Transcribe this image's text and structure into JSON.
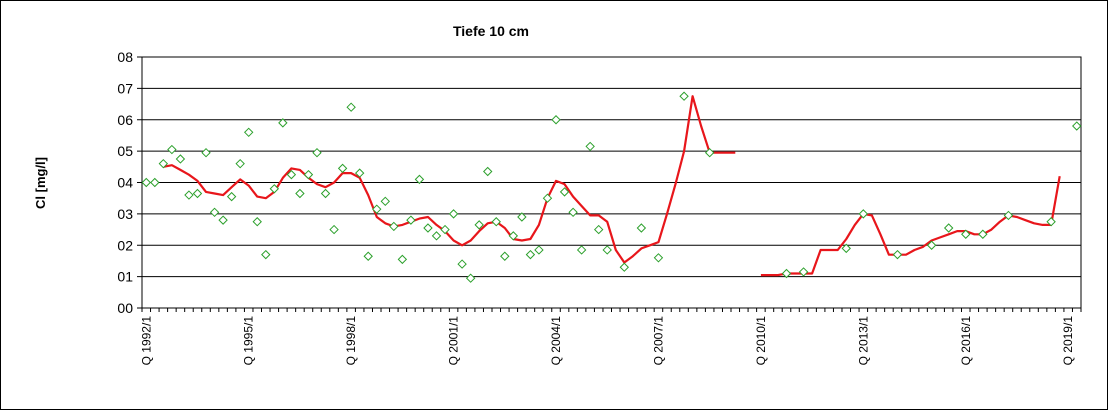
{
  "chart_data": {
    "type": "line",
    "title": "Tiefe  10 cm",
    "xlabel": "",
    "ylabel": "Cl [mg/l]",
    "ylim": [
      0,
      8
    ],
    "ytick_labels": [
      "00",
      "01",
      "02",
      "03",
      "04",
      "05",
      "06",
      "07",
      "08"
    ],
    "x_categories": [
      "Q 1992/1",
      "Q 1992/2",
      "Q 1992/3",
      "Q 1992/4",
      "Q 1993/1",
      "Q 1993/2",
      "Q 1993/3",
      "Q 1993/4",
      "Q 1994/1",
      "Q 1994/2",
      "Q 1994/3",
      "Q 1994/4",
      "Q 1995/1",
      "Q 1995/2",
      "Q 1995/3",
      "Q 1995/4",
      "Q 1996/1",
      "Q 1996/2",
      "Q 1996/3",
      "Q 1996/4",
      "Q 1997/1",
      "Q 1997/2",
      "Q 1997/3",
      "Q 1997/4",
      "Q 1998/1",
      "Q 1998/2",
      "Q 1998/3",
      "Q 1998/4",
      "Q 1999/1",
      "Q 1999/2",
      "Q 1999/3",
      "Q 1999/4",
      "Q 2000/1",
      "Q 2000/2",
      "Q 2000/3",
      "Q 2000/4",
      "Q 2001/1",
      "Q 2001/2",
      "Q 2001/3",
      "Q 2001/4",
      "Q 2002/1",
      "Q 2002/2",
      "Q 2002/3",
      "Q 2002/4",
      "Q 2003/1",
      "Q 2003/2",
      "Q 2003/3",
      "Q 2003/4",
      "Q 2004/1",
      "Q 2004/2",
      "Q 2004/3",
      "Q 2004/4",
      "Q 2005/1",
      "Q 2005/2",
      "Q 2005/3",
      "Q 2005/4",
      "Q 2006/1",
      "Q 2006/2",
      "Q 2006/3",
      "Q 2006/4",
      "Q 2007/1",
      "Q 2007/2",
      "Q 2007/3",
      "Q 2007/4",
      "Q 2008/1",
      "Q 2008/2",
      "Q 2008/3",
      "Q 2008/4",
      "Q 2009/1",
      "Q 2009/2",
      "Q 2009/3",
      "Q 2009/4",
      "Q 2010/1",
      "Q 2010/2",
      "Q 2010/3",
      "Q 2010/4",
      "Q 2011/1",
      "Q 2011/2",
      "Q 2011/3",
      "Q 2011/4",
      "Q 2012/1",
      "Q 2012/2",
      "Q 2012/3",
      "Q 2012/4",
      "Q 2013/1",
      "Q 2013/2",
      "Q 2013/3",
      "Q 2013/4",
      "Q 2014/1",
      "Q 2014/2",
      "Q 2014/3",
      "Q 2014/4",
      "Q 2015/1",
      "Q 2015/2",
      "Q 2015/3",
      "Q 2015/4",
      "Q 2016/1",
      "Q 2016/2",
      "Q 2016/3",
      "Q 2016/4",
      "Q 2017/1",
      "Q 2017/2",
      "Q 2017/3",
      "Q 2017/4",
      "Q 2018/1",
      "Q 2018/2",
      "Q 2018/3",
      "Q 2018/4",
      "Q 2019/1",
      "Q 2019/2"
    ],
    "x_tick_labels": [
      {
        "category": "Q 1992/1",
        "label": "Q 1992/1"
      },
      {
        "category": "Q 1995/1",
        "label": "Q 1995/1"
      },
      {
        "category": "Q 1998/1",
        "label": "Q 1998/1"
      },
      {
        "category": "Q 2001/1",
        "label": "Q 2001/1"
      },
      {
        "category": "Q 2004/1",
        "label": "Q 2004/1"
      },
      {
        "category": "Q 2007/1",
        "label": "Q 2007/1"
      },
      {
        "category": "Q 2010/1",
        "label": "Q 2010/1"
      },
      {
        "category": "Q 2013/1",
        "label": "Q 2013/1"
      },
      {
        "category": "Q 2016/1",
        "label": "Q 2016/1"
      },
      {
        "category": "Q 2019/1",
        "label": "Q 2019/1"
      }
    ],
    "grid": true,
    "series": [
      {
        "type": "scatter",
        "marker": "diamond",
        "color": "#2ca02c",
        "points": [
          {
            "x": "Q 1992/1",
            "y": 4.0
          },
          {
            "x": "Q 1992/2",
            "y": 4.0
          },
          {
            "x": "Q 1992/3",
            "y": 4.6
          },
          {
            "x": "Q 1992/4",
            "y": 5.05
          },
          {
            "x": "Q 1993/1",
            "y": 4.75
          },
          {
            "x": "Q 1993/2",
            "y": 3.6
          },
          {
            "x": "Q 1993/3",
            "y": 3.65
          },
          {
            "x": "Q 1993/4",
            "y": 4.95
          },
          {
            "x": "Q 1994/1",
            "y": 3.05
          },
          {
            "x": "Q 1994/2",
            "y": 2.8
          },
          {
            "x": "Q 1994/3",
            "y": 3.55
          },
          {
            "x": "Q 1994/4",
            "y": 4.6
          },
          {
            "x": "Q 1995/1",
            "y": 5.6
          },
          {
            "x": "Q 1995/2",
            "y": 2.75
          },
          {
            "x": "Q 1995/3",
            "y": 1.7
          },
          {
            "x": "Q 1995/4",
            "y": 3.8
          },
          {
            "x": "Q 1996/1",
            "y": 5.9
          },
          {
            "x": "Q 1996/2",
            "y": 4.25
          },
          {
            "x": "Q 1996/3",
            "y": 3.65
          },
          {
            "x": "Q 1996/4",
            "y": 4.25
          },
          {
            "x": "Q 1997/1",
            "y": 4.95
          },
          {
            "x": "Q 1997/2",
            "y": 3.65
          },
          {
            "x": "Q 1997/3",
            "y": 2.5
          },
          {
            "x": "Q 1997/4",
            "y": 4.45
          },
          {
            "x": "Q 1998/1",
            "y": 6.4
          },
          {
            "x": "Q 1998/2",
            "y": 4.3
          },
          {
            "x": "Q 1998/3",
            "y": 1.65
          },
          {
            "x": "Q 1998/4",
            "y": 3.15
          },
          {
            "x": "Q 1999/1",
            "y": 3.4
          },
          {
            "x": "Q 1999/2",
            "y": 2.6
          },
          {
            "x": "Q 1999/3",
            "y": 1.55
          },
          {
            "x": "Q 1999/4",
            "y": 2.8
          },
          {
            "x": "Q 2000/1",
            "y": 4.1
          },
          {
            "x": "Q 2000/2",
            "y": 2.55
          },
          {
            "x": "Q 2000/3",
            "y": 2.3
          },
          {
            "x": "Q 2000/4",
            "y": 2.5
          },
          {
            "x": "Q 2001/1",
            "y": 3.0
          },
          {
            "x": "Q 2001/2",
            "y": 1.4
          },
          {
            "x": "Q 2001/3",
            "y": 0.95
          },
          {
            "x": "Q 2001/4",
            "y": 2.65
          },
          {
            "x": "Q 2002/1",
            "y": 4.35
          },
          {
            "x": "Q 2002/2",
            "y": 2.75
          },
          {
            "x": "Q 2002/3",
            "y": 1.65
          },
          {
            "x": "Q 2002/4",
            "y": 2.3
          },
          {
            "x": "Q 2003/1",
            "y": 2.9
          },
          {
            "x": "Q 2003/2",
            "y": 1.7
          },
          {
            "x": "Q 2003/3",
            "y": 1.85
          },
          {
            "x": "Q 2003/4",
            "y": 3.5
          },
          {
            "x": "Q 2004/1",
            "y": 6.0
          },
          {
            "x": "Q 2004/2",
            "y": 3.7
          },
          {
            "x": "Q 2004/3",
            "y": 3.05
          },
          {
            "x": "Q 2004/4",
            "y": 1.85
          },
          {
            "x": "Q 2005/1",
            "y": 5.15
          },
          {
            "x": "Q 2005/2",
            "y": 2.5
          },
          {
            "x": "Q 2005/3",
            "y": 1.85
          },
          {
            "x": "Q 2006/1",
            "y": 1.3
          },
          {
            "x": "Q 2006/3",
            "y": 2.55
          },
          {
            "x": "Q 2007/1",
            "y": 1.6
          },
          {
            "x": "Q 2007/4",
            "y": 6.75
          },
          {
            "x": "Q 2008/3",
            "y": 4.95
          },
          {
            "x": "Q 2010/4",
            "y": 1.1
          },
          {
            "x": "Q 2011/2",
            "y": 1.15
          },
          {
            "x": "Q 2012/3",
            "y": 1.9
          },
          {
            "x": "Q 2013/1",
            "y": 3.0
          },
          {
            "x": "Q 2014/1",
            "y": 1.7
          },
          {
            "x": "Q 2015/1",
            "y": 2.0
          },
          {
            "x": "Q 2015/3",
            "y": 2.55
          },
          {
            "x": "Q 2016/1",
            "y": 2.35
          },
          {
            "x": "Q 2016/3",
            "y": 2.35
          },
          {
            "x": "Q 2017/2",
            "y": 2.95
          },
          {
            "x": "Q 2018/3",
            "y": 2.75
          },
          {
            "x": "Q 2019/2",
            "y": 5.8
          }
        ]
      },
      {
        "type": "line",
        "color": "#e8161b",
        "segments": [
          [
            {
              "x": "Q 1992/3",
              "y": 4.5
            },
            {
              "x": "Q 1992/4",
              "y": 4.55
            },
            {
              "x": "Q 1993/1",
              "y": 4.4
            },
            {
              "x": "Q 1993/2",
              "y": 4.25
            },
            {
              "x": "Q 1993/3",
              "y": 4.05
            },
            {
              "x": "Q 1993/4",
              "y": 3.7
            },
            {
              "x": "Q 1994/1",
              "y": 3.65
            },
            {
              "x": "Q 1994/2",
              "y": 3.6
            },
            {
              "x": "Q 1994/3",
              "y": 3.85
            },
            {
              "x": "Q 1994/4",
              "y": 4.1
            },
            {
              "x": "Q 1995/1",
              "y": 3.9
            },
            {
              "x": "Q 1995/2",
              "y": 3.55
            },
            {
              "x": "Q 1995/3",
              "y": 3.5
            },
            {
              "x": "Q 1995/4",
              "y": 3.7
            },
            {
              "x": "Q 1996/1",
              "y": 4.15
            },
            {
              "x": "Q 1996/2",
              "y": 4.45
            },
            {
              "x": "Q 1996/3",
              "y": 4.4
            },
            {
              "x": "Q 1996/4",
              "y": 4.15
            },
            {
              "x": "Q 1997/1",
              "y": 3.95
            },
            {
              "x": "Q 1997/2",
              "y": 3.85
            },
            {
              "x": "Q 1997/3",
              "y": 4.0
            },
            {
              "x": "Q 1997/4",
              "y": 4.3
            },
            {
              "x": "Q 1998/1",
              "y": 4.3
            },
            {
              "x": "Q 1998/2",
              "y": 4.15
            },
            {
              "x": "Q 1998/3",
              "y": 3.6
            },
            {
              "x": "Q 1998/4",
              "y": 2.9
            },
            {
              "x": "Q 1999/1",
              "y": 2.7
            },
            {
              "x": "Q 1999/2",
              "y": 2.6
            },
            {
              "x": "Q 1999/3",
              "y": 2.65
            },
            {
              "x": "Q 1999/4",
              "y": 2.75
            },
            {
              "x": "Q 2000/1",
              "y": 2.85
            },
            {
              "x": "Q 2000/2",
              "y": 2.9
            },
            {
              "x": "Q 2000/3",
              "y": 2.65
            },
            {
              "x": "Q 2000/4",
              "y": 2.45
            },
            {
              "x": "Q 2001/1",
              "y": 2.15
            },
            {
              "x": "Q 2001/2",
              "y": 2.0
            },
            {
              "x": "Q 2001/3",
              "y": 2.15
            },
            {
              "x": "Q 2001/4",
              "y": 2.45
            },
            {
              "x": "Q 2002/1",
              "y": 2.7
            },
            {
              "x": "Q 2002/2",
              "y": 2.75
            },
            {
              "x": "Q 2002/3",
              "y": 2.55
            },
            {
              "x": "Q 2002/4",
              "y": 2.2
            },
            {
              "x": "Q 2003/1",
              "y": 2.15
            },
            {
              "x": "Q 2003/2",
              "y": 2.2
            },
            {
              "x": "Q 2003/3",
              "y": 2.65
            },
            {
              "x": "Q 2003/4",
              "y": 3.5
            },
            {
              "x": "Q 2004/1",
              "y": 4.05
            },
            {
              "x": "Q 2004/2",
              "y": 3.95
            },
            {
              "x": "Q 2004/3",
              "y": 3.55
            },
            {
              "x": "Q 2004/4",
              "y": 3.25
            },
            {
              "x": "Q 2005/1",
              "y": 2.95
            },
            {
              "x": "Q 2005/2",
              "y": 2.95
            },
            {
              "x": "Q 2005/3",
              "y": 2.75
            },
            {
              "x": "Q 2005/4",
              "y": 1.85
            },
            {
              "x": "Q 2006/1",
              "y": 1.45
            },
            {
              "x": "Q 2006/2",
              "y": 1.65
            },
            {
              "x": "Q 2006/3",
              "y": 1.9
            },
            {
              "x": "Q 2006/4",
              "y": 2.0
            },
            {
              "x": "Q 2007/1",
              "y": 2.1
            },
            {
              "x": "Q 2007/2",
              "y": 3.0
            },
            {
              "x": "Q 2007/3",
              "y": 3.95
            },
            {
              "x": "Q 2007/4",
              "y": 5.0
            },
            {
              "x": "Q 2008/1",
              "y": 6.75
            },
            {
              "x": "Q 2008/2",
              "y": 5.8
            },
            {
              "x": "Q 2008/3",
              "y": 4.95
            },
            {
              "x": "Q 2008/4",
              "y": 4.95
            },
            {
              "x": "Q 2009/1",
              "y": 4.95
            },
            {
              "x": "Q 2009/2",
              "y": 4.95
            }
          ],
          [
            {
              "x": "Q 2010/1",
              "y": 1.05
            },
            {
              "x": "Q 2010/2",
              "y": 1.05
            },
            {
              "x": "Q 2010/3",
              "y": 1.05
            },
            {
              "x": "Q 2010/4",
              "y": 1.1
            },
            {
              "x": "Q 2011/1",
              "y": 1.1
            },
            {
              "x": "Q 2011/2",
              "y": 1.1
            },
            {
              "x": "Q 2011/3",
              "y": 1.1
            },
            {
              "x": "Q 2011/4",
              "y": 1.85
            },
            {
              "x": "Q 2012/1",
              "y": 1.85
            },
            {
              "x": "Q 2012/2",
              "y": 1.85
            },
            {
              "x": "Q 2012/3",
              "y": 2.2
            },
            {
              "x": "Q 2012/4",
              "y": 2.65
            },
            {
              "x": "Q 2013/1",
              "y": 3.0
            },
            {
              "x": "Q 2013/2",
              "y": 2.95
            },
            {
              "x": "Q 2013/3",
              "y": 2.35
            },
            {
              "x": "Q 2013/4",
              "y": 1.7
            },
            {
              "x": "Q 2014/1",
              "y": 1.7
            },
            {
              "x": "Q 2014/2",
              "y": 1.7
            },
            {
              "x": "Q 2014/3",
              "y": 1.85
            },
            {
              "x": "Q 2014/4",
              "y": 1.95
            },
            {
              "x": "Q 2015/1",
              "y": 2.15
            },
            {
              "x": "Q 2015/2",
              "y": 2.25
            },
            {
              "x": "Q 2015/3",
              "y": 2.35
            },
            {
              "x": "Q 2015/4",
              "y": 2.45
            },
            {
              "x": "Q 2016/1",
              "y": 2.45
            },
            {
              "x": "Q 2016/2",
              "y": 2.35
            },
            {
              "x": "Q 2016/3",
              "y": 2.35
            },
            {
              "x": "Q 2016/4",
              "y": 2.5
            },
            {
              "x": "Q 2017/1",
              "y": 2.75
            },
            {
              "x": "Q 2017/2",
              "y": 2.95
            },
            {
              "x": "Q 2017/3",
              "y": 2.9
            },
            {
              "x": "Q 2017/4",
              "y": 2.8
            },
            {
              "x": "Q 2018/1",
              "y": 2.7
            },
            {
              "x": "Q 2018/2",
              "y": 2.65
            },
            {
              "x": "Q 2018/3",
              "y": 2.65
            },
            {
              "x": "Q 2018/4",
              "y": 4.2
            }
          ]
        ]
      }
    ]
  }
}
